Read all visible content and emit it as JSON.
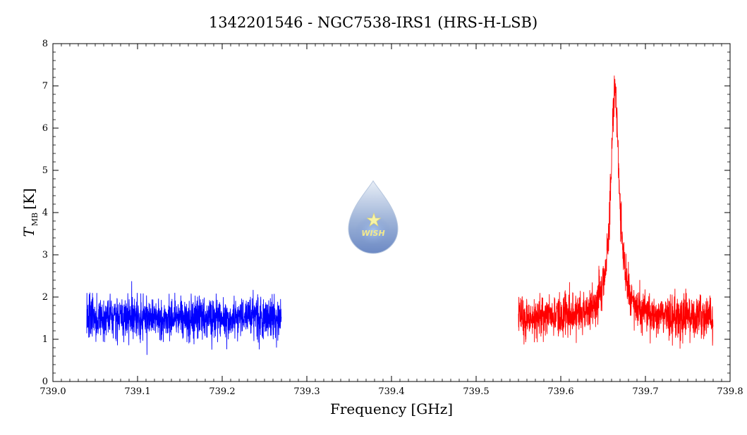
{
  "chart_data": {
    "type": "line",
    "title": "1342201546 - NGC7538-IRS1 (HRS-H-LSB)",
    "xlabel": "Frequency [GHz]",
    "ylabel_main": "T",
    "ylabel_sub": "MB",
    "ylabel_unit": "[K]",
    "xlim": [
      739.0,
      739.8
    ],
    "ylim": [
      0,
      8
    ],
    "x_ticks": [
      "739.0",
      "739.1",
      "739.2",
      "739.3",
      "739.4",
      "739.5",
      "739.6",
      "739.7",
      "739.8"
    ],
    "y_ticks": [
      "0",
      "1",
      "2",
      "3",
      "4",
      "5",
      "6",
      "7",
      "8"
    ],
    "grid": false,
    "series": [
      {
        "color": "#0000ff",
        "x_range": [
          739.04,
          739.27
        ],
        "baseline": 1.5,
        "noise_rms": 0.25,
        "peak": null
      },
      {
        "color": "#ff0000",
        "x_range": [
          739.55,
          739.78
        ],
        "baseline": 1.5,
        "noise_rms": 0.25,
        "peak": {
          "center": 739.664,
          "amplitude": 5.4,
          "width": 0.006
        }
      }
    ],
    "logo": {
      "text": "WISH",
      "icon": "water-drop-star-icon"
    }
  }
}
